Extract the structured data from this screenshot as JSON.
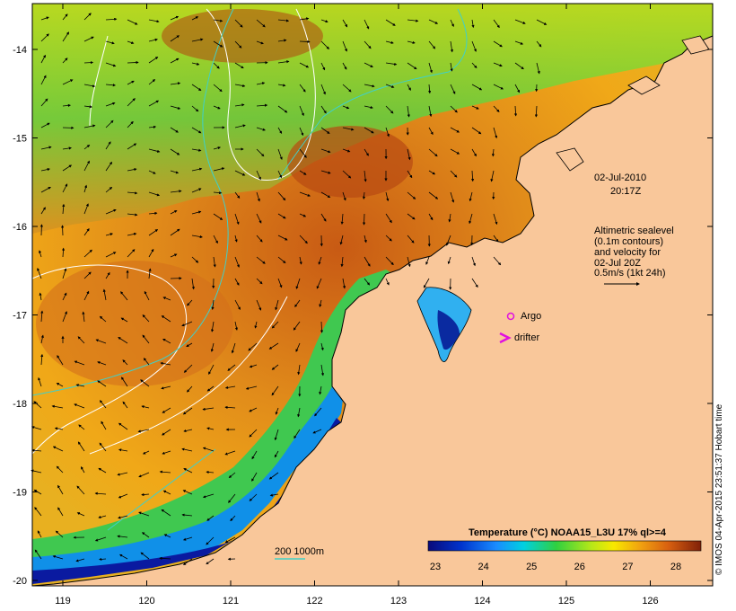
{
  "map": {
    "date": "02-Jul-2010",
    "time": "20:17Z",
    "x_ticks": [
      "119",
      "120",
      "121",
      "122",
      "123",
      "124",
      "125",
      "126"
    ],
    "y_ticks": [
      "-14",
      "-15",
      "-16",
      "-17",
      "-18",
      "-19",
      "-20"
    ],
    "altimetry_lines": [
      "Altimetric sealevel",
      "(0.1m contours)",
      "and velocity for",
      "02-Jul 20Z",
      "0.5m/s (1kt 24h)"
    ],
    "argo_label": "Argo",
    "drifter_label": "drifter",
    "bathy_label": "200  1000m",
    "credit": "© IMOS 04-Apr-2015 23:51:37 Hobart time"
  },
  "colorbar": {
    "title": "Temperature (°C) NOAA15_L3U 17% ql>=4",
    "ticks": [
      "23",
      "24",
      "25",
      "26",
      "27",
      "28"
    ]
  },
  "colors": {
    "land": "#f9c79a",
    "contour_white": "#ffffff",
    "contour_cyan": "#40d0c8",
    "marker": "#e010e0"
  }
}
